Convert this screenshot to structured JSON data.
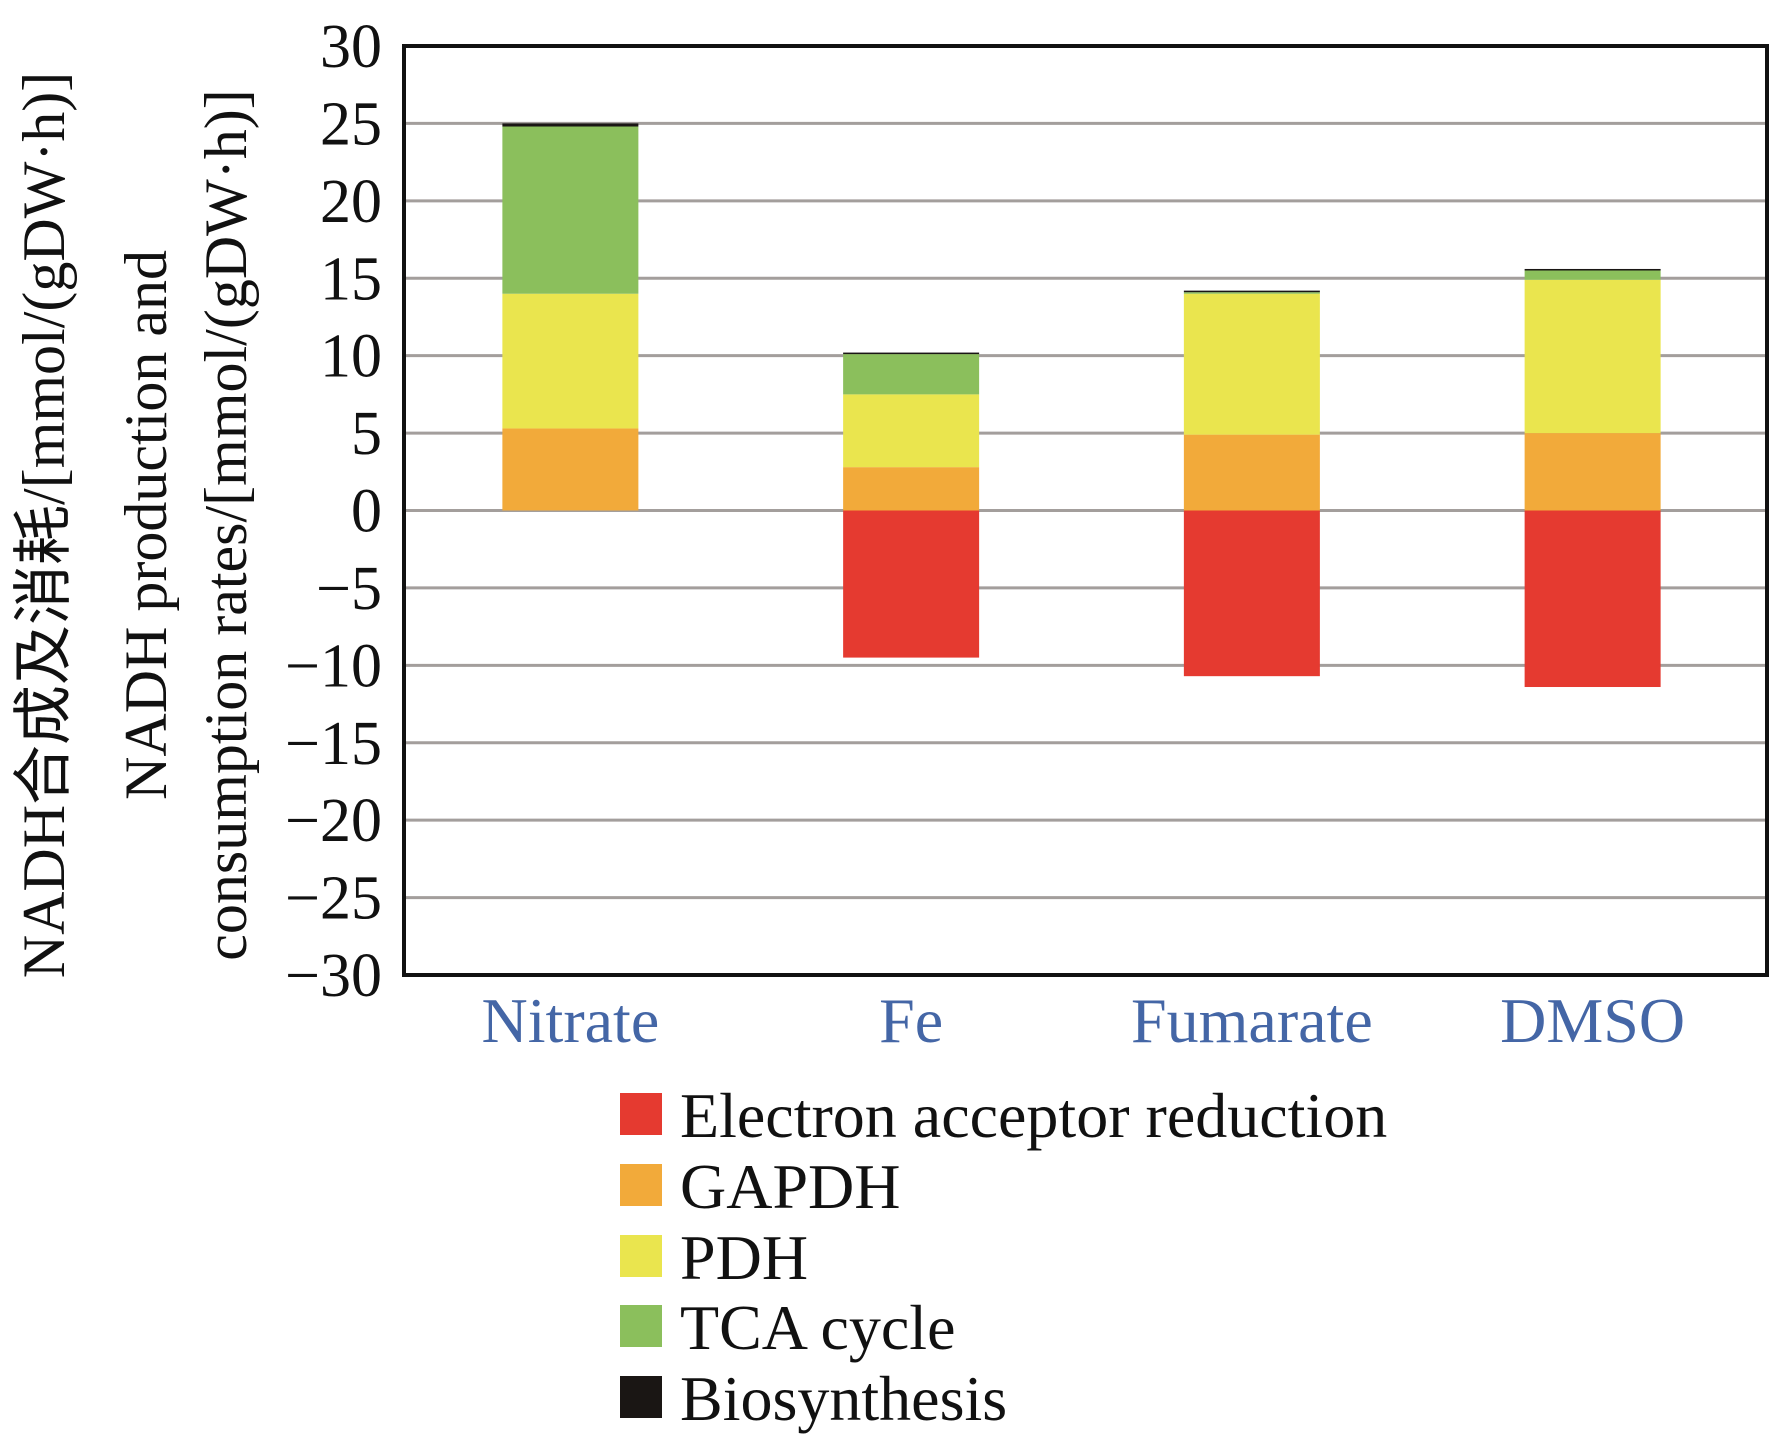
{
  "chart_data": {
    "type": "bar",
    "stacked": true,
    "title": "",
    "xlabel": "",
    "ylabel_lines": [
      "NADH合成及消耗/[mmol/(gDW·h)]",
      "NADH production and",
      "consumption rates/[mmol/(gDW·h)]"
    ],
    "ylim": [
      -30,
      30
    ],
    "yticks": [
      30,
      25,
      20,
      15,
      10,
      5,
      0,
      -5,
      -10,
      -15,
      -20,
      -25,
      -30
    ],
    "ytick_labels": [
      "30",
      "25",
      "20",
      "15",
      "10",
      "5",
      "0",
      "−5",
      "−10",
      "−15",
      "−20",
      "−25",
      "−30"
    ],
    "grid": true,
    "categories": [
      "Nitrate",
      "Fe",
      "Fumarate",
      "DMSO"
    ],
    "series": [
      {
        "name": "Electron acceptor reduction",
        "color": "#e53a30",
        "values": [
          0,
          -9.5,
          -10.7,
          -11.4
        ]
      },
      {
        "name": "GAPDH",
        "color": "#f2aa3a",
        "values": [
          5.3,
          2.8,
          4.9,
          5.0
        ]
      },
      {
        "name": "PDH",
        "color": "#eae54e",
        "values": [
          8.7,
          4.7,
          9.1,
          9.9
        ]
      },
      {
        "name": "TCA cycle",
        "color": "#8bbf5c",
        "values": [
          10.8,
          2.6,
          0.1,
          0.6
        ]
      },
      {
        "name": "Biosynthesis",
        "color": "#1a1614",
        "values": [
          0.2,
          0.1,
          0.1,
          0.1
        ]
      }
    ],
    "legend_position": "bottom-center",
    "category_label_color": "#4466a6"
  }
}
